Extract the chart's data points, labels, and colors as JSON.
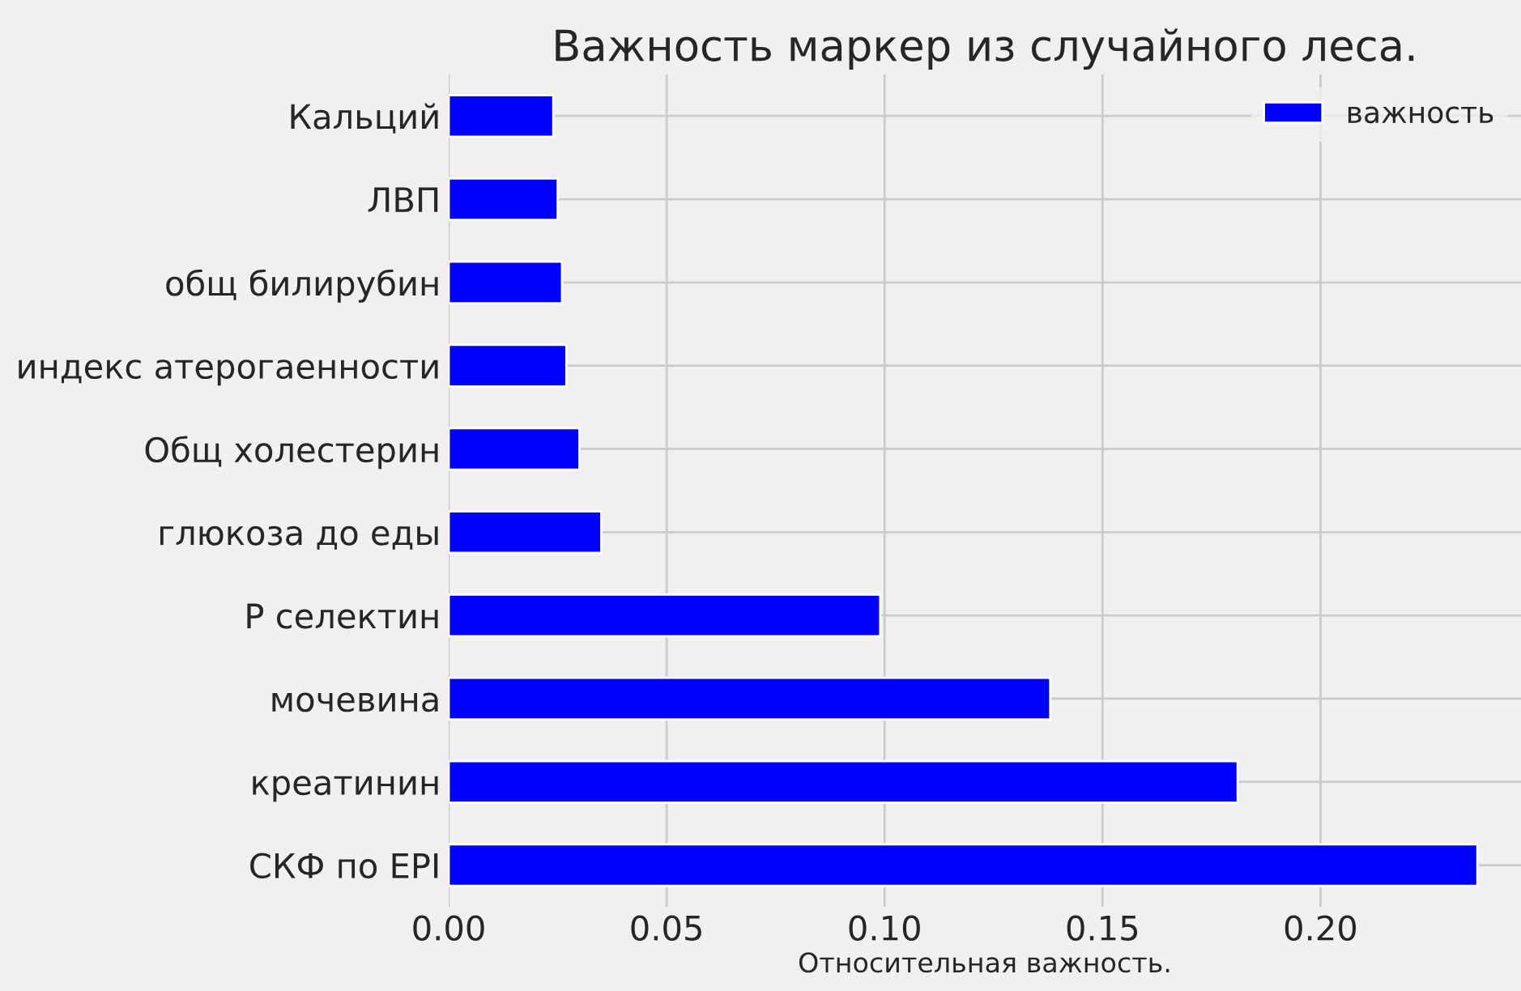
{
  "chart_data": {
    "type": "bar",
    "orientation": "horizontal",
    "title": "Важность маркер из случайного леса.",
    "xlabel": "Относительная важность.",
    "categories": [
      "Кальций",
      "ЛВП",
      "общ билирубин",
      "индекс атерогаенности",
      "Общ холестерин",
      "глюкоза до еды",
      "P селектин",
      "мочевина",
      "креатинин",
      "СКФ по EPI"
    ],
    "series": [
      {
        "name": "важность",
        "color": "#0000ff",
        "values": [
          0.024,
          0.025,
          0.026,
          0.027,
          0.03,
          0.035,
          0.099,
          0.138,
          0.181,
          0.236
        ]
      }
    ],
    "xlim": [
      0,
      0.246
    ],
    "xticks": [
      {
        "value": 0,
        "label": "0.00"
      },
      {
        "value": 0.05,
        "label": "0.05"
      },
      {
        "value": 0.1,
        "label": "0.10"
      },
      {
        "value": 0.15,
        "label": "0.15"
      },
      {
        "value": 0.2,
        "label": "0.20"
      }
    ],
    "grid": true,
    "legend": "top right"
  }
}
